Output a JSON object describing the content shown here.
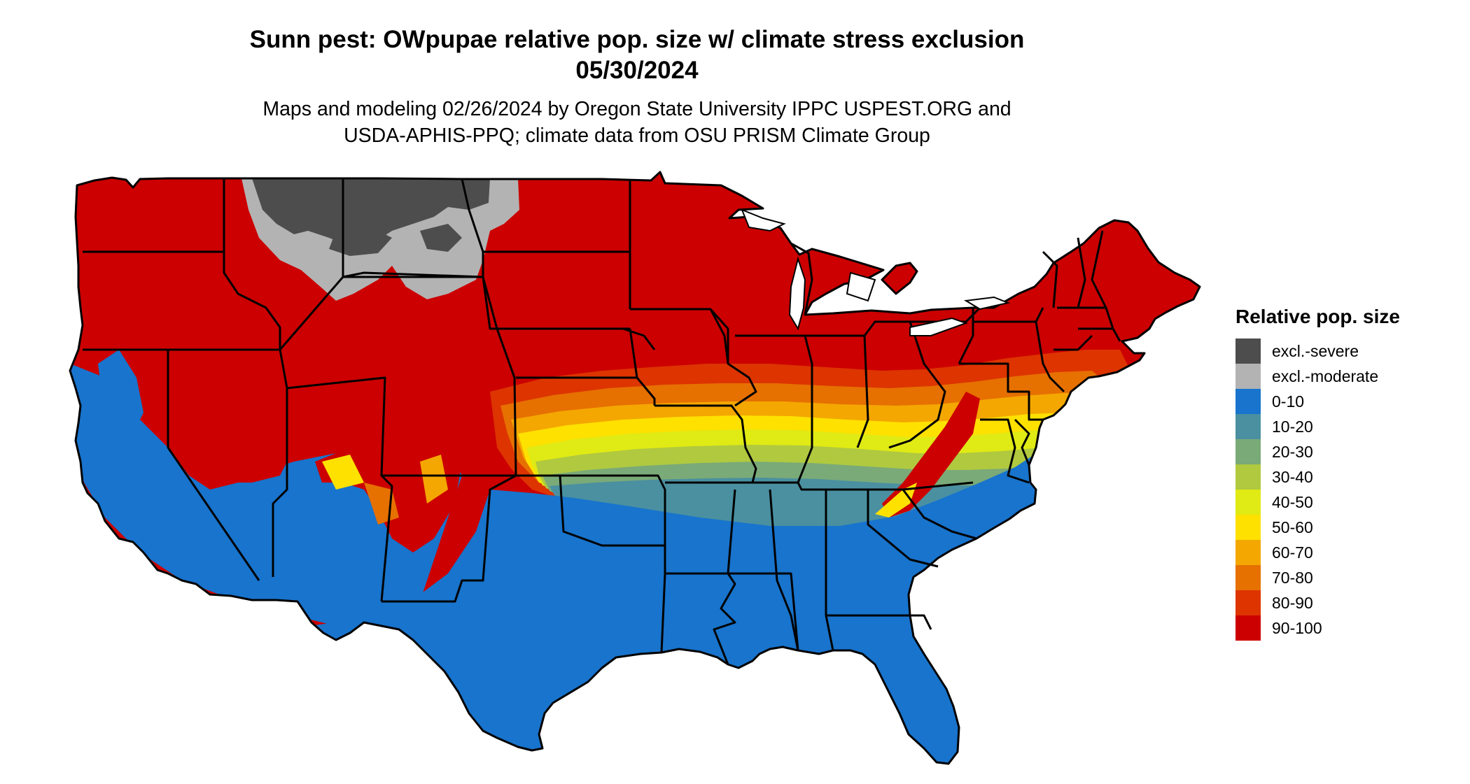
{
  "title": {
    "line1": "Sunn pest: OWpupae relative pop. size w/ climate stress exclusion",
    "line2": "05/30/2024"
  },
  "subtitle": {
    "line1": "Maps and modeling 02/26/2024 by Oregon State University IPPC USPEST.ORG and",
    "line2": "USDA-APHIS-PPQ; climate data from OSU PRISM Climate Group"
  },
  "legend": {
    "title": "Relative pop. size",
    "items": [
      {
        "label": "excl.-severe",
        "color": "#4d4d4d"
      },
      {
        "label": "excl.-moderate",
        "color": "#b3b3b3"
      },
      {
        "label": "0-10",
        "color": "#1874cd"
      },
      {
        "label": "10-20",
        "color": "#4a90a0"
      },
      {
        "label": "20-30",
        "color": "#7aaa78"
      },
      {
        "label": "30-40",
        "color": "#b0c93f"
      },
      {
        "label": "40-50",
        "color": "#e0ea14"
      },
      {
        "label": "50-60",
        "color": "#ffe100"
      },
      {
        "label": "60-70",
        "color": "#f4a700"
      },
      {
        "label": "70-80",
        "color": "#e67000"
      },
      {
        "label": "80-90",
        "color": "#dd3400"
      },
      {
        "label": "90-100",
        "color": "#cc0000"
      }
    ]
  }
}
